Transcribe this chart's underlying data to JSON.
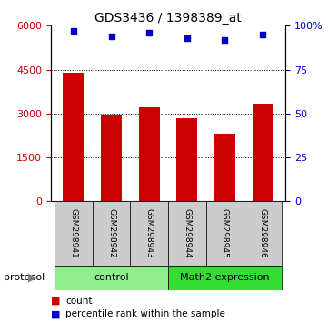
{
  "title": "GDS3436 / 1398389_at",
  "samples": [
    "GSM298941",
    "GSM298942",
    "GSM298943",
    "GSM298944",
    "GSM298945",
    "GSM298946"
  ],
  "counts": [
    4400,
    2950,
    3200,
    2850,
    2300,
    3350
  ],
  "percentiles": [
    97,
    94,
    96,
    93,
    92,
    95
  ],
  "ylim_left": [
    0,
    6000
  ],
  "ylim_right": [
    0,
    100
  ],
  "yticks_left": [
    0,
    1500,
    3000,
    4500,
    6000
  ],
  "yticks_right": [
    0,
    25,
    50,
    75,
    100
  ],
  "bar_color": "#cc0000",
  "dot_color": "#0000cc",
  "ctrl_color": "#90ee90",
  "math2_color": "#33dd33",
  "sample_box_color": "#cccccc",
  "left_tick_color": "#cc0000",
  "right_tick_color": "#0000cc",
  "legend_count_label": "count",
  "legend_pct_label": "percentile rank within the sample",
  "protocol_label": "protocol",
  "ctrl_label": "control",
  "math2_label": "Math2 expression"
}
